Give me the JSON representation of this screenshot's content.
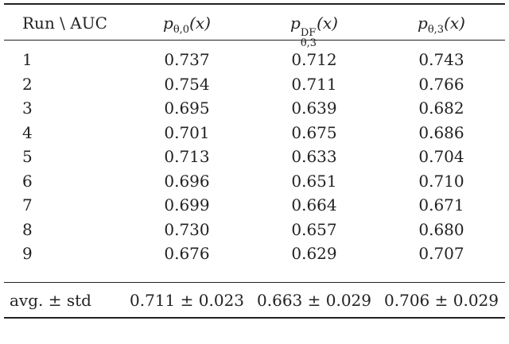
{
  "table": {
    "header": [
      {
        "text": "Run \\ AUC"
      },
      {
        "base": "p",
        "sub": "θ,0",
        "arg": "(x)"
      },
      {
        "base": "p",
        "sup": "DF",
        "sub": "θ,3",
        "arg": "(x)"
      },
      {
        "base": "p",
        "sub": "θ,3",
        "arg": "(x)"
      }
    ],
    "rows": [
      [
        "1",
        "0.737",
        "0.712",
        "0.743"
      ],
      [
        "2",
        "0.754",
        "0.711",
        "0.766"
      ],
      [
        "3",
        "0.695",
        "0.639",
        "0.682"
      ],
      [
        "4",
        "0.701",
        "0.675",
        "0.686"
      ],
      [
        "5",
        "0.713",
        "0.633",
        "0.704"
      ],
      [
        "6",
        "0.696",
        "0.651",
        "0.710"
      ],
      [
        "7",
        "0.699",
        "0.664",
        "0.671"
      ],
      [
        "8",
        "0.730",
        "0.657",
        "0.680"
      ],
      [
        "9",
        "0.676",
        "0.629",
        "0.707"
      ]
    ],
    "summary": [
      "avg. ± std",
      "0.711 ± 0.023",
      "0.663 ± 0.029",
      "0.706 ± 0.029"
    ]
  }
}
